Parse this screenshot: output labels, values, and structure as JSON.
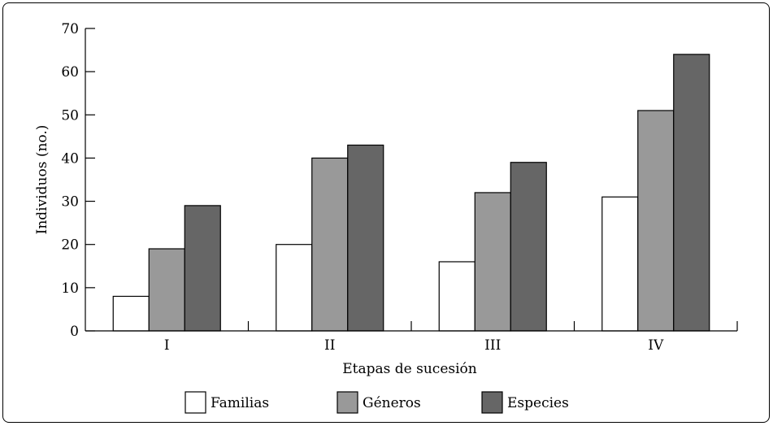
{
  "chart_data": {
    "type": "bar",
    "title": "",
    "xlabel": "Etapas de sucesión",
    "ylabel": "Individuos (no.)",
    "ylim": [
      0,
      70
    ],
    "yticks": [
      0,
      10,
      20,
      30,
      40,
      50,
      60,
      70
    ],
    "categories": [
      "I",
      "II",
      "III",
      "IV"
    ],
    "series": [
      {
        "name": "Familias",
        "color": "#ffffff",
        "values": [
          8,
          20,
          16,
          31
        ]
      },
      {
        "name": "Géneros",
        "color": "#999999",
        "values": [
          19,
          40,
          32,
          51
        ]
      },
      {
        "name": "Especies",
        "color": "#666666",
        "values": [
          29,
          43,
          39,
          64
        ]
      }
    ],
    "legend_position": "bottom",
    "grid": false
  }
}
